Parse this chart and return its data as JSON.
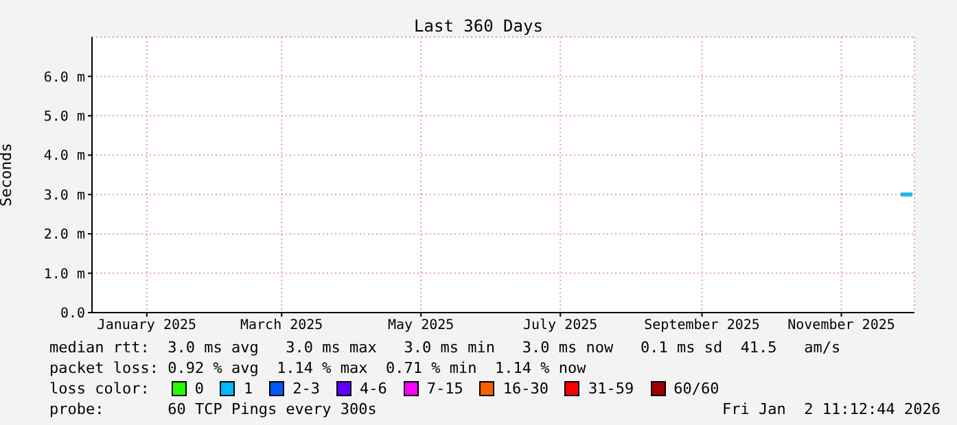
{
  "chart_data": {
    "type": "line",
    "title": "Last 360 Days",
    "ylabel": "Seconds",
    "xlim": [
      "2024-12-08",
      "2025-12-03"
    ],
    "xticks": [
      {
        "value": "2025-01-01",
        "label": "January 2025"
      },
      {
        "value": "2025-03-01",
        "label": "March 2025"
      },
      {
        "value": "2025-05-01",
        "label": "May 2025"
      },
      {
        "value": "2025-07-01",
        "label": "July 2025"
      },
      {
        "value": "2025-09-01",
        "label": "September 2025"
      },
      {
        "value": "2025-11-01",
        "label": "November 2025"
      }
    ],
    "ylim": [
      0,
      7
    ],
    "yticks": [
      {
        "value": 0,
        "label": "0.0"
      },
      {
        "value": 1,
        "label": "1.0 m"
      },
      {
        "value": 2,
        "label": "2.0 m"
      },
      {
        "value": 3,
        "label": "3.0 m"
      },
      {
        "value": 4,
        "label": "4.0 m"
      },
      {
        "value": 5,
        "label": "5.0 m"
      },
      {
        "value": 6,
        "label": "6.0 m"
      }
    ],
    "grid": true,
    "legend": "bottom",
    "x": [
      "2025-11-27",
      "2025-12-02"
    ],
    "series": [
      {
        "color": "#1fb8e8",
        "values": [
          3.0,
          3.0
        ]
      },
      {
        "name": "0",
        "color": "#26ff00",
        "values": [
          null,
          null
        ]
      },
      {
        "name": "1",
        "color": "#00b8ff",
        "values": [
          null,
          null
        ]
      },
      {
        "name": "2-3",
        "color": "#0059ff",
        "values": [
          null,
          null
        ]
      },
      {
        "name": "4-6",
        "color": "#5e00ff",
        "values": [
          null,
          null
        ]
      },
      {
        "name": "7-15",
        "color": "#ff00ff",
        "values": [
          null,
          null
        ]
      },
      {
        "name": "16-30",
        "color": "#ff5e00",
        "values": [
          null,
          null
        ]
      },
      {
        "name": "31-59",
        "color": "#ff0000",
        "values": [
          null,
          null
        ]
      },
      {
        "name": "60/60",
        "color": "#a10000",
        "values": [
          null,
          null
        ]
      }
    ],
    "annotations": [
      "median rtt:  3.0 ms avg   3.0 ms max   3.0 ms min   3.0 ms now   0.1 ms sd  41.5   am/s",
      "packet loss: 0.92 % avg  1.14 % max  0.71 % min  1.14 % now",
      "loss color:",
      "probe:       60 TCP Pings every 300s",
      "Fri Jan  2 11:12:44 2026"
    ]
  }
}
